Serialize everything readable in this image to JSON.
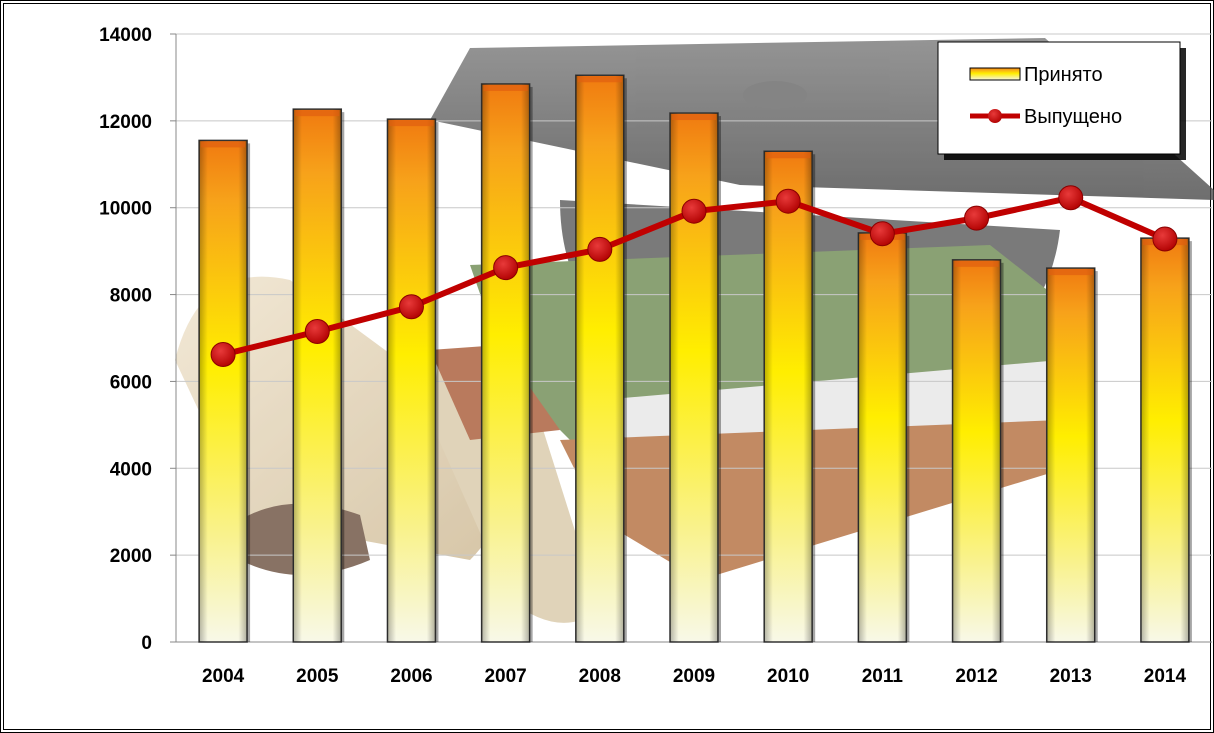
{
  "chart_data": {
    "type": "bar",
    "categories": [
      "2004",
      "2005",
      "2006",
      "2007",
      "2008",
      "2009",
      "2010",
      "2011",
      "2012",
      "2013",
      "2014"
    ],
    "series": [
      {
        "name": "Принято",
        "type": "bar",
        "values": [
          11550,
          12270,
          12040,
          12850,
          13050,
          12180,
          11300,
          9420,
          8800,
          8610,
          9300
        ]
      },
      {
        "name": "Выпущено",
        "type": "line",
        "values": [
          6620,
          7150,
          7720,
          8620,
          9040,
          9920,
          10150,
          9400,
          9760,
          10230,
          9280
        ]
      }
    ],
    "ylim": [
      0,
      14000
    ],
    "yticks": [
      "0",
      "2000",
      "4000",
      "6000",
      "8000",
      "10000",
      "12000",
      "14000"
    ],
    "grid": true,
    "legend": "top-right",
    "colors": {
      "bar_top": "#f07a10",
      "bar_mid": "#ffee00",
      "bar_bottom": "#f8f8e0",
      "line": "#c00000"
    }
  }
}
